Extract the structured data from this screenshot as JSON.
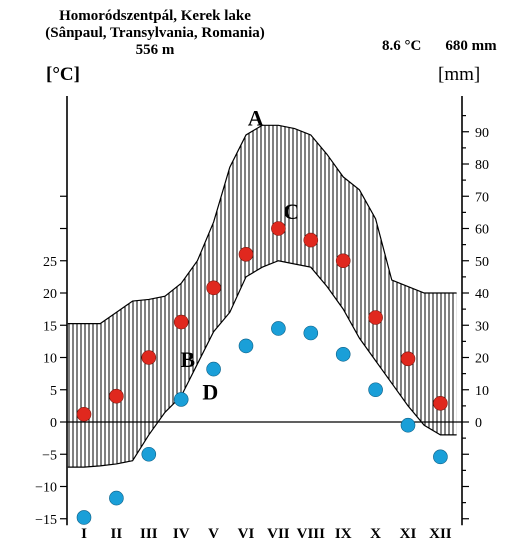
{
  "header": {
    "title_line1": "Homoródszentpál, Kerek lake",
    "title_line2": "(Sânpaul, Transylvania, Romania)",
    "title_line3": "556 m",
    "mean_temperature": "8.6 °C",
    "annual_precipitation": "680 mm"
  },
  "chart_data": {
    "type": "line",
    "chart_subtype": "climate diagram (Walter–Lieth style)",
    "categories": [
      "I",
      "II",
      "III",
      "IV",
      "V",
      "VI",
      "VII",
      "VIII",
      "IX",
      "X",
      "XI",
      "XII"
    ],
    "left_axis": {
      "label": "[°C]",
      "ticks": [
        25,
        20,
        15,
        10,
        5,
        0,
        -5,
        -10,
        -15
      ],
      "tick_labels": [
        "25",
        "20",
        "15",
        "10",
        "5",
        "0",
        "−5",
        "−10",
        "−15"
      ],
      "ylim": [
        -16,
        36
      ]
    },
    "right_axis": {
      "label": "[mm]",
      "ticks": [
        90,
        80,
        70,
        60,
        50,
        40,
        30,
        20,
        10,
        0
      ],
      "tick_labels": [
        "90",
        "80",
        "70",
        "60",
        "50",
        "40",
        "30",
        "20",
        "10",
        "0"
      ],
      "ylim": [
        -32,
        100
      ],
      "scale_note": "10 mm = 5 °C"
    },
    "series": [
      {
        "name": "A",
        "role": "upper envelope of hatched band (precipitation scale)",
        "points_x": [
          -0.5,
          0,
          0.5,
          1,
          1.5,
          2,
          2.5,
          3,
          3.5,
          4,
          4.5,
          5,
          5.5,
          6,
          6.5,
          7,
          7.5,
          8,
          8.5,
          9,
          9.5,
          10,
          10.5,
          11,
          11.5
        ],
        "values_mm": [
          30.5,
          30.5,
          30.5,
          34,
          37.5,
          38,
          39,
          43,
          50,
          62,
          79,
          89,
          92,
          92,
          91,
          89,
          83,
          76,
          72,
          63,
          44,
          42,
          40,
          40,
          40
        ]
      },
      {
        "name": "B",
        "role": "lower envelope of hatched band (temperature scale)",
        "points_x": [
          -0.5,
          0,
          0.5,
          1,
          1.5,
          2,
          2.5,
          3,
          3.5,
          4,
          4.5,
          5,
          5.5,
          6,
          6.5,
          7,
          7.5,
          8,
          8.5,
          9,
          9.5,
          10,
          10.5,
          11,
          11.5
        ],
        "values_c": [
          -7,
          -7,
          -6.8,
          -6.5,
          -6,
          -2,
          1.5,
          4,
          9,
          14,
          17,
          22.5,
          24,
          25,
          24.5,
          24,
          21,
          17.5,
          13,
          9.5,
          6,
          2.5,
          -0.5,
          -2,
          -2
        ]
      },
      {
        "name": "C",
        "color": "#e0281e",
        "marker": "circle",
        "values_c": [
          1.2,
          4,
          10,
          15.5,
          20.8,
          26,
          30,
          28.2,
          25,
          16.2,
          9.8,
          2.9
        ]
      },
      {
        "name": "D",
        "color": "#1a9fd8",
        "marker": "circle",
        "values_c": [
          -14.8,
          -11.8,
          -5,
          3.5,
          8.2,
          11.8,
          14.5,
          13.8,
          10.5,
          5,
          -0.5,
          -5.4
        ]
      }
    ],
    "annotations": [
      {
        "text": "A",
        "x": 5.3,
        "y_c": 46
      },
      {
        "text": "B",
        "x": 3.2,
        "y_c": 8.5
      },
      {
        "text": "C",
        "x": 6.4,
        "y_c": 31.5
      },
      {
        "text": "D",
        "x": 3.9,
        "y_c": 3.5
      }
    ],
    "grid": false,
    "legend": "none",
    "colors": {
      "hatch": "#000000",
      "line": "#000000",
      "red_points": "#e0281e",
      "blue_points": "#1a9fd8"
    }
  }
}
